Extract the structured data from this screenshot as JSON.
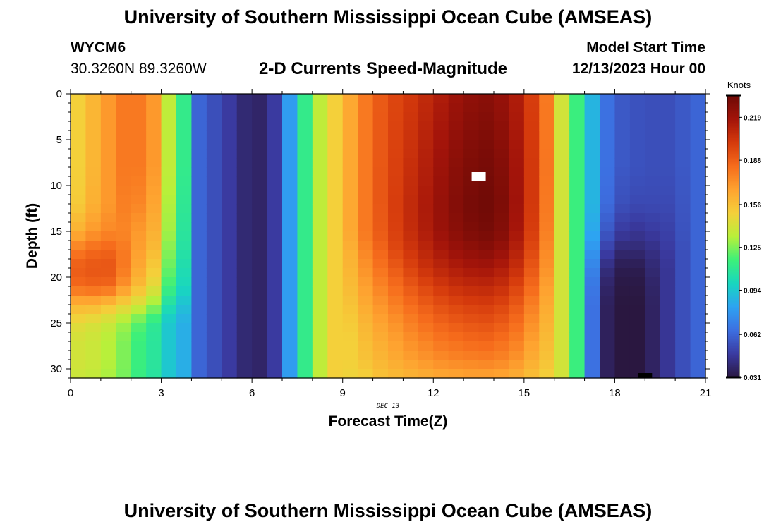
{
  "header": {
    "title": "University of Southern Mississippi Ocean Cube (AMSEAS)",
    "station_id": "WYCM6",
    "coords": "30.3260N  89.3260W",
    "subtitle": "2-D Currents Speed-Magnitude",
    "model_start_label": "Model Start Time",
    "model_start_value": "12/13/2023 Hour 00"
  },
  "footer": {
    "title": "University of Southern Mississippi Ocean Cube (AMSEAS)"
  },
  "chart_data": {
    "type": "heatmap",
    "title": "2-D Currents Speed-Magnitude",
    "xlabel": "Forecast Time(Z)",
    "ylabel": "Depth (ft)",
    "x_date_label": "DEC 13",
    "xlim": [
      0,
      21
    ],
    "ylim": [
      0,
      31
    ],
    "y_inverted": true,
    "x_ticks": [
      0,
      3,
      6,
      9,
      12,
      15,
      18,
      21
    ],
    "x_tick_labels": [
      "0",
      "3",
      "6",
      "9",
      "12",
      "15",
      "18",
      "21"
    ],
    "y_ticks": [
      0,
      5,
      10,
      15,
      20,
      25,
      30
    ],
    "y_tick_labels": [
      "0",
      "5",
      "10",
      "15",
      "20",
      "25",
      "30"
    ],
    "colorbar": {
      "label": "Knots",
      "min": 0.031,
      "max": 0.235,
      "ticks": [
        0.031,
        0.062,
        0.094,
        0.125,
        0.156,
        0.188,
        0.219
      ],
      "tick_labels": [
        "0.031",
        "0.062",
        "0.094",
        "0.125",
        "0.156",
        "0.188",
        "0.219"
      ],
      "colors": [
        "#2a1740",
        "#3a3aa0",
        "#3d6ee0",
        "#2ea2f2",
        "#18d6c0",
        "#3cf07a",
        "#b8f03a",
        "#f4d03a",
        "#fea330",
        "#f66c1c",
        "#d53a0c",
        "#a3140a",
        "#6e0a06"
      ]
    },
    "column_width_hours": 0.5,
    "depth_knots": [
      0,
      8,
      12,
      15,
      17,
      19,
      21,
      23,
      25,
      27,
      29,
      31
    ],
    "column_speed_profiles": [
      [
        0.15,
        0.15,
        0.152,
        0.162,
        0.18,
        0.19,
        0.185,
        0.16,
        0.145,
        0.14,
        0.14,
        0.138
      ],
      [
        0.16,
        0.16,
        0.162,
        0.17,
        0.185,
        0.192,
        0.187,
        0.16,
        0.142,
        0.138,
        0.138,
        0.136
      ],
      [
        0.17,
        0.17,
        0.17,
        0.175,
        0.187,
        0.192,
        0.186,
        0.155,
        0.138,
        0.133,
        0.133,
        0.131
      ],
      [
        0.18,
        0.18,
        0.178,
        0.176,
        0.18,
        0.18,
        0.172,
        0.148,
        0.13,
        0.125,
        0.125,
        0.124
      ],
      [
        0.18,
        0.18,
        0.176,
        0.17,
        0.168,
        0.165,
        0.158,
        0.14,
        0.12,
        0.115,
        0.115,
        0.114
      ],
      [
        0.17,
        0.17,
        0.166,
        0.162,
        0.158,
        0.152,
        0.145,
        0.128,
        0.11,
        0.108,
        0.108,
        0.107
      ],
      [
        0.135,
        0.135,
        0.132,
        0.13,
        0.126,
        0.122,
        0.116,
        0.104,
        0.094,
        0.094,
        0.094,
        0.094
      ],
      [
        0.112,
        0.112,
        0.11,
        0.108,
        0.106,
        0.103,
        0.1,
        0.092,
        0.086,
        0.086,
        0.086,
        0.086
      ],
      [
        0.062,
        0.062,
        0.062,
        0.062,
        0.062,
        0.062,
        0.062,
        0.062,
        0.062,
        0.062,
        0.062,
        0.062
      ],
      [
        0.055,
        0.055,
        0.055,
        0.055,
        0.055,
        0.055,
        0.055,
        0.055,
        0.055,
        0.055,
        0.055,
        0.055
      ],
      [
        0.048,
        0.048,
        0.048,
        0.048,
        0.048,
        0.048,
        0.048,
        0.048,
        0.048,
        0.048,
        0.048,
        0.048
      ],
      [
        0.04,
        0.04,
        0.04,
        0.04,
        0.04,
        0.04,
        0.04,
        0.04,
        0.04,
        0.04,
        0.04,
        0.04
      ],
      [
        0.038,
        0.038,
        0.038,
        0.038,
        0.038,
        0.038,
        0.038,
        0.038,
        0.038,
        0.038,
        0.038,
        0.038
      ],
      [
        0.048,
        0.048,
        0.048,
        0.048,
        0.048,
        0.048,
        0.048,
        0.048,
        0.048,
        0.048,
        0.048,
        0.048
      ],
      [
        0.08,
        0.08,
        0.08,
        0.08,
        0.08,
        0.08,
        0.08,
        0.08,
        0.08,
        0.08,
        0.08,
        0.08
      ],
      [
        0.112,
        0.112,
        0.112,
        0.112,
        0.112,
        0.112,
        0.112,
        0.112,
        0.112,
        0.112,
        0.112,
        0.112
      ],
      [
        0.135,
        0.135,
        0.135,
        0.135,
        0.135,
        0.135,
        0.135,
        0.135,
        0.135,
        0.135,
        0.135,
        0.135
      ],
      [
        0.15,
        0.15,
        0.15,
        0.15,
        0.15,
        0.15,
        0.15,
        0.15,
        0.15,
        0.15,
        0.15,
        0.15
      ],
      [
        0.165,
        0.165,
        0.165,
        0.165,
        0.162,
        0.16,
        0.158,
        0.155,
        0.152,
        0.15,
        0.15,
        0.148
      ],
      [
        0.18,
        0.18,
        0.18,
        0.18,
        0.176,
        0.172,
        0.168,
        0.164,
        0.16,
        0.157,
        0.155,
        0.15
      ],
      [
        0.19,
        0.191,
        0.191,
        0.19,
        0.186,
        0.182,
        0.177,
        0.171,
        0.167,
        0.163,
        0.16,
        0.155
      ],
      [
        0.197,
        0.199,
        0.2,
        0.199,
        0.196,
        0.19,
        0.184,
        0.178,
        0.172,
        0.168,
        0.164,
        0.158
      ],
      [
        0.202,
        0.206,
        0.208,
        0.207,
        0.203,
        0.198,
        0.191,
        0.184,
        0.178,
        0.173,
        0.168,
        0.16
      ],
      [
        0.208,
        0.213,
        0.215,
        0.214,
        0.21,
        0.205,
        0.197,
        0.189,
        0.183,
        0.177,
        0.171,
        0.162
      ],
      [
        0.214,
        0.22,
        0.222,
        0.221,
        0.216,
        0.21,
        0.202,
        0.194,
        0.187,
        0.181,
        0.174,
        0.164
      ],
      [
        0.22,
        0.226,
        0.228,
        0.226,
        0.221,
        0.214,
        0.206,
        0.197,
        0.19,
        0.183,
        0.176,
        0.165
      ],
      [
        0.224,
        0.23,
        0.232,
        0.23,
        0.224,
        0.217,
        0.208,
        0.199,
        0.192,
        0.185,
        0.177,
        0.166
      ],
      [
        0.226,
        0.232,
        0.234,
        0.232,
        0.226,
        0.218,
        0.209,
        0.2,
        0.193,
        0.186,
        0.178,
        0.166
      ],
      [
        0.222,
        0.228,
        0.23,
        0.228,
        0.222,
        0.214,
        0.206,
        0.197,
        0.19,
        0.183,
        0.176,
        0.165
      ],
      [
        0.214,
        0.218,
        0.219,
        0.217,
        0.212,
        0.206,
        0.198,
        0.19,
        0.184,
        0.178,
        0.171,
        0.162
      ],
      [
        0.2,
        0.202,
        0.202,
        0.2,
        0.196,
        0.191,
        0.185,
        0.178,
        0.173,
        0.168,
        0.163,
        0.156
      ],
      [
        0.18,
        0.181,
        0.18,
        0.178,
        0.175,
        0.172,
        0.168,
        0.164,
        0.161,
        0.158,
        0.155,
        0.15
      ],
      [
        0.14,
        0.14,
        0.14,
        0.14,
        0.14,
        0.14,
        0.14,
        0.14,
        0.14,
        0.14,
        0.14,
        0.14
      ],
      [
        0.115,
        0.115,
        0.115,
        0.115,
        0.115,
        0.115,
        0.115,
        0.115,
        0.115,
        0.115,
        0.115,
        0.115
      ],
      [
        0.088,
        0.088,
        0.088,
        0.084,
        0.078,
        0.072,
        0.068,
        0.066,
        0.066,
        0.066,
        0.066,
        0.066
      ],
      [
        0.066,
        0.066,
        0.064,
        0.058,
        0.05,
        0.042,
        0.038,
        0.036,
        0.036,
        0.036,
        0.036,
        0.036
      ],
      [
        0.058,
        0.058,
        0.055,
        0.048,
        0.04,
        0.034,
        0.032,
        0.031,
        0.031,
        0.031,
        0.031,
        0.031
      ],
      [
        0.056,
        0.056,
        0.053,
        0.046,
        0.04,
        0.034,
        0.032,
        0.031,
        0.031,
        0.031,
        0.031,
        0.031
      ],
      [
        0.055,
        0.055,
        0.053,
        0.048,
        0.043,
        0.04,
        0.038,
        0.037,
        0.037,
        0.037,
        0.037,
        0.037
      ],
      [
        0.055,
        0.055,
        0.053,
        0.05,
        0.048,
        0.046,
        0.046,
        0.046,
        0.046,
        0.046,
        0.046,
        0.046
      ],
      [
        0.058,
        0.058,
        0.057,
        0.056,
        0.055,
        0.055,
        0.055,
        0.055,
        0.055,
        0.055,
        0.055,
        0.055
      ],
      [
        0.062,
        0.062,
        0.062,
        0.062,
        0.062,
        0.062,
        0.062,
        0.062,
        0.062,
        0.062,
        0.062,
        0.062
      ]
    ],
    "max_marker": {
      "x": 13.5,
      "depth": 9
    },
    "min_marker": {
      "x": 19.0,
      "depth": 31
    }
  }
}
